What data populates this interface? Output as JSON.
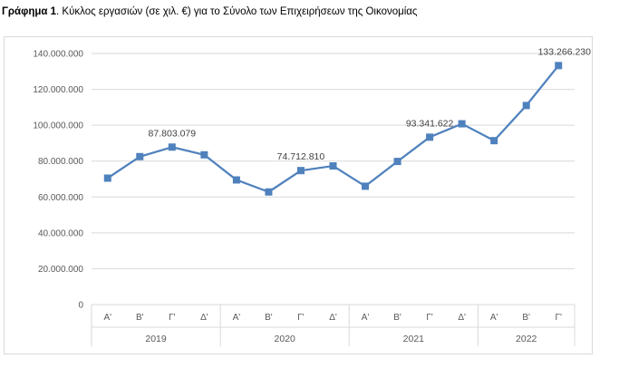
{
  "header": {
    "title_bold": "Γράφημα 1",
    "title_rest": ". Κύκλος εργασιών (σε χιλ. €) για το Σύνολο των Επιχειρήσεων της Οικονομίας"
  },
  "chart_data": {
    "type": "line",
    "title": "Γράφημα 1. Κύκλος εργασιών (σε χιλ. €) για το Σύνολο των Επιχειρήσεων της Οικονομίας",
    "categories": [
      "Α'",
      "Β'",
      "Γ'",
      "Δ'",
      "Α'",
      "Β'",
      "Γ'",
      "Δ'",
      "Α'",
      "Β'",
      "Γ'",
      "Δ'",
      "Α'",
      "Β'",
      "Γ'"
    ],
    "groups": [
      {
        "label": "2019",
        "count": 4
      },
      {
        "label": "2020",
        "count": 4
      },
      {
        "label": "2021",
        "count": 4
      },
      {
        "label": "2022",
        "count": 3
      }
    ],
    "series": [
      {
        "values": [
          70500000,
          82500000,
          87803079,
          83500000,
          69500000,
          62800000,
          74712810,
          77300000,
          66000000,
          79800000,
          93341622,
          100800000,
          91400000,
          111000000,
          133266230
        ],
        "color": "#4f81bd"
      }
    ],
    "data_labels": [
      {
        "index": 2,
        "text": "87.803.079"
      },
      {
        "index": 6,
        "text": "74.712.810"
      },
      {
        "index": 10,
        "text": "93.341.622"
      },
      {
        "index": 14,
        "text": "133.266.230"
      }
    ],
    "ylim": [
      0,
      140000000
    ],
    "yticks": [
      {
        "value": 0,
        "label": "0"
      },
      {
        "value": 20000000,
        "label": "20.000.000"
      },
      {
        "value": 40000000,
        "label": "40.000.000"
      },
      {
        "value": 60000000,
        "label": "60.000.000"
      },
      {
        "value": 80000000,
        "label": "80.000.000"
      },
      {
        "value": 100000000,
        "label": "100.000.000"
      },
      {
        "value": 120000000,
        "label": "120.000.000"
      },
      {
        "value": 140000000,
        "label": "140.000.000"
      }
    ],
    "grid": true,
    "legend": "none",
    "colors": {
      "line": "#4f81bd",
      "grid": "#d9d9d9"
    }
  }
}
